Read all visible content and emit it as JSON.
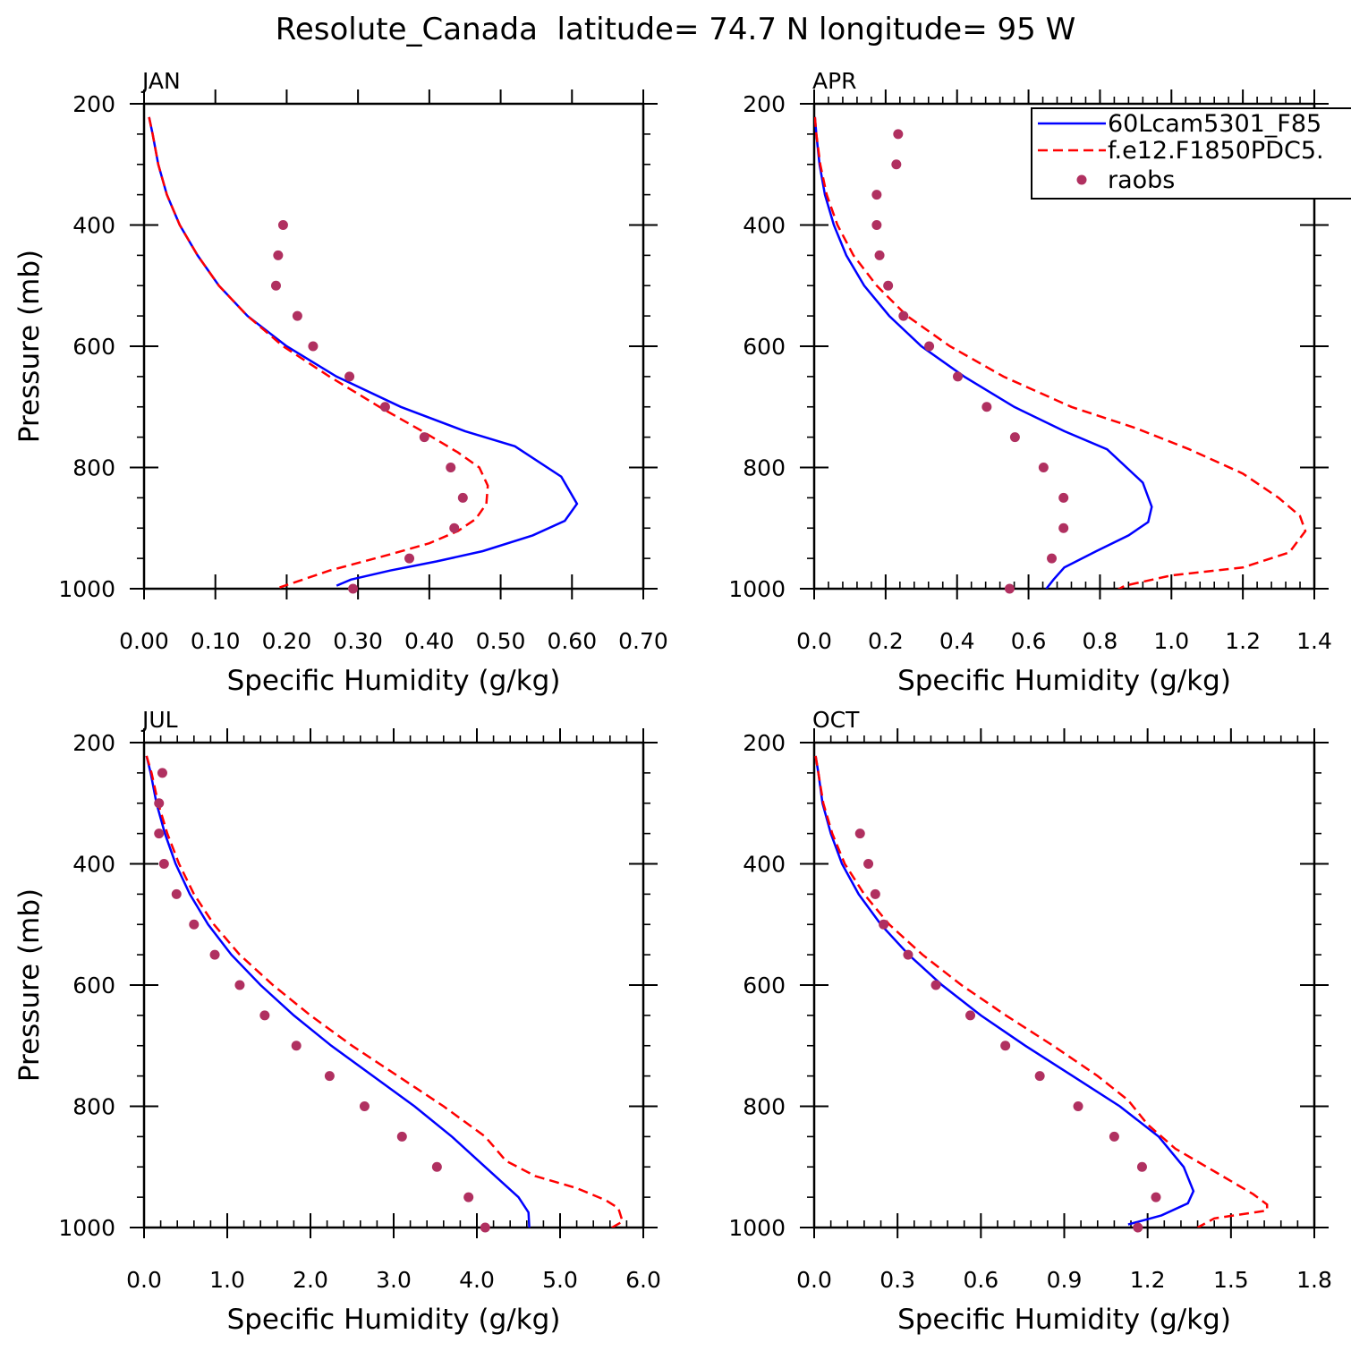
{
  "figure_title": "Resolute_Canada  latitude= 74.7 N longitude= 95 W",
  "colors": {
    "model1": "#0000ff",
    "model2": "#ff0000",
    "raobs": "#b03060",
    "axes": "#000000"
  },
  "legend": {
    "placement": "top-right of APR panel",
    "entries": [
      {
        "label": "60Lcam5301_F85",
        "style": "solid",
        "color": "#0000ff"
      },
      {
        "label": "f.e12.F1850PDC5.",
        "style": "dashed",
        "color": "#ff0000"
      },
      {
        "label": "raobs",
        "style": "markers",
        "color": "#b03060"
      }
    ]
  },
  "chart_data": [
    {
      "type": "line",
      "panel_label": "JAN",
      "xlabel": "Specific Humidity (g/kg)",
      "ylabel": "Pressure (mb)",
      "xlim": [
        0,
        0.7
      ],
      "ylim": [
        1000,
        200
      ],
      "xticks": [
        0,
        0.1,
        0.2,
        0.3,
        0.4,
        0.5,
        0.6,
        0.7
      ],
      "xtick_labels": [
        "0.00",
        "0.10",
        "0.20",
        "0.30",
        "0.40",
        "0.50",
        "0.60",
        "0.70"
      ],
      "yticks": [
        200,
        400,
        600,
        800,
        1000
      ],
      "ytick_labels": [
        "200",
        "400",
        "600",
        "800",
        "1000"
      ],
      "xminor": 5,
      "yminor": 50,
      "series": [
        {
          "name": "60Lcam5301_F85",
          "style": "solid",
          "x": [
            0.007,
            0.012,
            0.02,
            0.032,
            0.05,
            0.075,
            0.105,
            0.145,
            0.2,
            0.27,
            0.36,
            0.45,
            0.52,
            0.585,
            0.607,
            0.59,
            0.545,
            0.475,
            0.41,
            0.345,
            0.29,
            0.27
          ],
          "y": [
            222,
            250,
            300,
            350,
            400,
            450,
            500,
            550,
            600,
            650,
            700,
            740,
            765,
            815,
            860,
            888,
            912,
            938,
            955,
            970,
            985,
            995
          ]
        },
        {
          "name": "f.e12.F1850PDC5.",
          "style": "dashed",
          "x": [
            0.007,
            0.012,
            0.02,
            0.032,
            0.05,
            0.075,
            0.105,
            0.145,
            0.195,
            0.26,
            0.33,
            0.39,
            0.44,
            0.47,
            0.482,
            0.48,
            0.465,
            0.44,
            0.4,
            0.34,
            0.26,
            0.19
          ],
          "y": [
            222,
            250,
            300,
            350,
            400,
            450,
            500,
            550,
            600,
            650,
            700,
            740,
            775,
            800,
            830,
            860,
            885,
            905,
            925,
            945,
            970,
            998
          ]
        }
      ],
      "raobs": {
        "x": [
          0.195,
          0.188,
          0.185,
          0.215,
          0.237,
          0.288,
          0.338,
          0.393,
          0.43,
          0.447,
          0.435,
          0.372,
          0.293
        ],
        "y": [
          400,
          450,
          500,
          550,
          600,
          650,
          700,
          750,
          800,
          850,
          900,
          950,
          1000
        ]
      }
    },
    {
      "type": "line",
      "panel_label": "APR",
      "xlabel": "Specific Humidity (g/kg)",
      "ylabel": "",
      "xlim": [
        0,
        1.4
      ],
      "ylim": [
        1000,
        200
      ],
      "xticks": [
        0,
        0.2,
        0.4,
        0.6,
        0.8,
        1.0,
        1.2,
        1.4
      ],
      "xtick_labels": [
        "0.0",
        "0.2",
        "0.4",
        "0.6",
        "0.8",
        "1.0",
        "1.2",
        "1.4"
      ],
      "yticks": [
        200,
        400,
        600,
        800,
        1000
      ],
      "ytick_labels": [
        "200",
        "400",
        "600",
        "800",
        "1000"
      ],
      "xminor": 0.04,
      "yminor": 50,
      "series": [
        {
          "name": "60Lcam5301_F85",
          "style": "solid",
          "x": [
            0.002,
            0.006,
            0.015,
            0.03,
            0.055,
            0.09,
            0.14,
            0.21,
            0.3,
            0.42,
            0.56,
            0.7,
            0.82,
            0.92,
            0.945,
            0.935,
            0.88,
            0.79,
            0.7,
            0.67,
            0.65
          ],
          "y": [
            222,
            250,
            300,
            350,
            400,
            450,
            500,
            550,
            600,
            650,
            700,
            740,
            770,
            825,
            865,
            890,
            912,
            938,
            965,
            985,
            1000
          ]
        },
        {
          "name": "f.e12.F1850PDC5.",
          "style": "dashed",
          "x": [
            0.002,
            0.006,
            0.017,
            0.035,
            0.065,
            0.11,
            0.175,
            0.26,
            0.38,
            0.53,
            0.72,
            0.9,
            1.05,
            1.2,
            1.3,
            1.36,
            1.375,
            1.33,
            1.2,
            1.0,
            0.87,
            0.83
          ],
          "y": [
            222,
            250,
            300,
            350,
            400,
            450,
            500,
            550,
            600,
            650,
            700,
            735,
            770,
            810,
            850,
            880,
            905,
            940,
            965,
            978,
            995,
            1008
          ]
        }
      ],
      "raobs": {
        "x": [
          0.235,
          0.23,
          0.175,
          0.175,
          0.183,
          0.207,
          0.25,
          0.322,
          0.402,
          0.483,
          0.562,
          0.642,
          0.698,
          0.698,
          0.665,
          0.547
        ],
        "y": [
          250,
          300,
          350,
          400,
          450,
          500,
          550,
          600,
          650,
          700,
          750,
          800,
          850,
          900,
          950,
          1000
        ]
      }
    },
    {
      "type": "line",
      "panel_label": "JUL",
      "xlabel": "Specific Humidity (g/kg)",
      "ylabel": "Pressure (mb)",
      "xlim": [
        0,
        6
      ],
      "ylim": [
        1000,
        200
      ],
      "xticks": [
        0,
        1,
        2,
        3,
        4,
        5,
        6
      ],
      "xtick_labels": [
        "0.0",
        "1.0",
        "2.0",
        "3.0",
        "4.0",
        "5.0",
        "6.0"
      ],
      "yticks": [
        200,
        400,
        600,
        800,
        1000
      ],
      "ytick_labels": [
        "200",
        "400",
        "600",
        "800",
        "1000"
      ],
      "xminor": 0.2,
      "yminor": 50,
      "series": [
        {
          "name": "60Lcam5301_F85",
          "style": "solid",
          "x": [
            0.03,
            0.08,
            0.15,
            0.25,
            0.38,
            0.55,
            0.77,
            1.05,
            1.4,
            1.8,
            2.25,
            2.75,
            3.25,
            3.7,
            4.1,
            4.5,
            4.62,
            4.63
          ],
          "y": [
            222,
            250,
            300,
            350,
            400,
            450,
            500,
            550,
            600,
            650,
            700,
            750,
            800,
            850,
            900,
            950,
            975,
            1000
          ]
        },
        {
          "name": "f.e12.F1850PDC5.",
          "style": "dashed",
          "x": [
            0.03,
            0.09,
            0.17,
            0.28,
            0.42,
            0.6,
            0.84,
            1.15,
            1.55,
            2.0,
            2.5,
            3.05,
            3.6,
            4.1,
            4.35,
            4.7,
            5.2,
            5.55,
            5.7,
            5.75,
            5.6
          ],
          "y": [
            222,
            250,
            300,
            350,
            400,
            450,
            500,
            550,
            600,
            650,
            700,
            750,
            800,
            850,
            890,
            915,
            935,
            955,
            968,
            990,
            1002
          ]
        }
      ],
      "raobs": {
        "x": [
          0.22,
          0.18,
          0.18,
          0.24,
          0.39,
          0.6,
          0.85,
          1.15,
          1.45,
          1.83,
          2.23,
          2.65,
          3.1,
          3.52,
          3.9,
          4.1
        ],
        "y": [
          250,
          300,
          350,
          400,
          450,
          500,
          550,
          600,
          650,
          700,
          750,
          800,
          850,
          900,
          950,
          1000
        ]
      }
    },
    {
      "type": "line",
      "panel_label": "OCT",
      "xlabel": "Specific Humidity (g/kg)",
      "ylabel": "",
      "xlim": [
        0,
        1.8
      ],
      "ylim": [
        1000,
        200
      ],
      "xticks": [
        0,
        0.3,
        0.6,
        0.9,
        1.2,
        1.5,
        1.8
      ],
      "xtick_labels": [
        "0.0",
        "0.3",
        "0.6",
        "0.9",
        "1.2",
        "1.5",
        "1.8"
      ],
      "yticks": [
        200,
        400,
        600,
        800,
        1000
      ],
      "ytick_labels": [
        "200",
        "400",
        "600",
        "800",
        "1000"
      ],
      "xminor": 0.06,
      "yminor": 50,
      "series": [
        {
          "name": "60Lcam5301_F85",
          "style": "solid",
          "x": [
            0.005,
            0.015,
            0.03,
            0.06,
            0.1,
            0.16,
            0.24,
            0.34,
            0.46,
            0.6,
            0.76,
            0.93,
            1.1,
            1.24,
            1.33,
            1.365,
            1.345,
            1.25,
            1.13
          ],
          "y": [
            222,
            250,
            300,
            350,
            400,
            450,
            500,
            550,
            600,
            650,
            700,
            750,
            800,
            850,
            900,
            940,
            960,
            980,
            995
          ]
        },
        {
          "name": "f.e12.F1850PDC5.",
          "style": "dashed",
          "x": [
            0.005,
            0.015,
            0.033,
            0.065,
            0.11,
            0.18,
            0.27,
            0.39,
            0.53,
            0.69,
            0.86,
            1.02,
            1.13,
            1.2,
            1.3,
            1.45,
            1.58,
            1.63,
            1.63,
            1.44,
            1.38
          ],
          "y": [
            222,
            250,
            300,
            350,
            400,
            450,
            500,
            550,
            600,
            650,
            700,
            750,
            790,
            830,
            870,
            910,
            945,
            962,
            972,
            985,
            1000
          ]
        }
      ],
      "raobs": {
        "x": [
          0.165,
          0.195,
          0.22,
          0.25,
          0.338,
          0.438,
          0.562,
          0.688,
          0.812,
          0.95,
          1.08,
          1.18,
          1.23,
          1.165
        ],
        "y": [
          350,
          400,
          450,
          500,
          550,
          600,
          650,
          700,
          750,
          800,
          850,
          900,
          950,
          1000
        ]
      }
    }
  ]
}
